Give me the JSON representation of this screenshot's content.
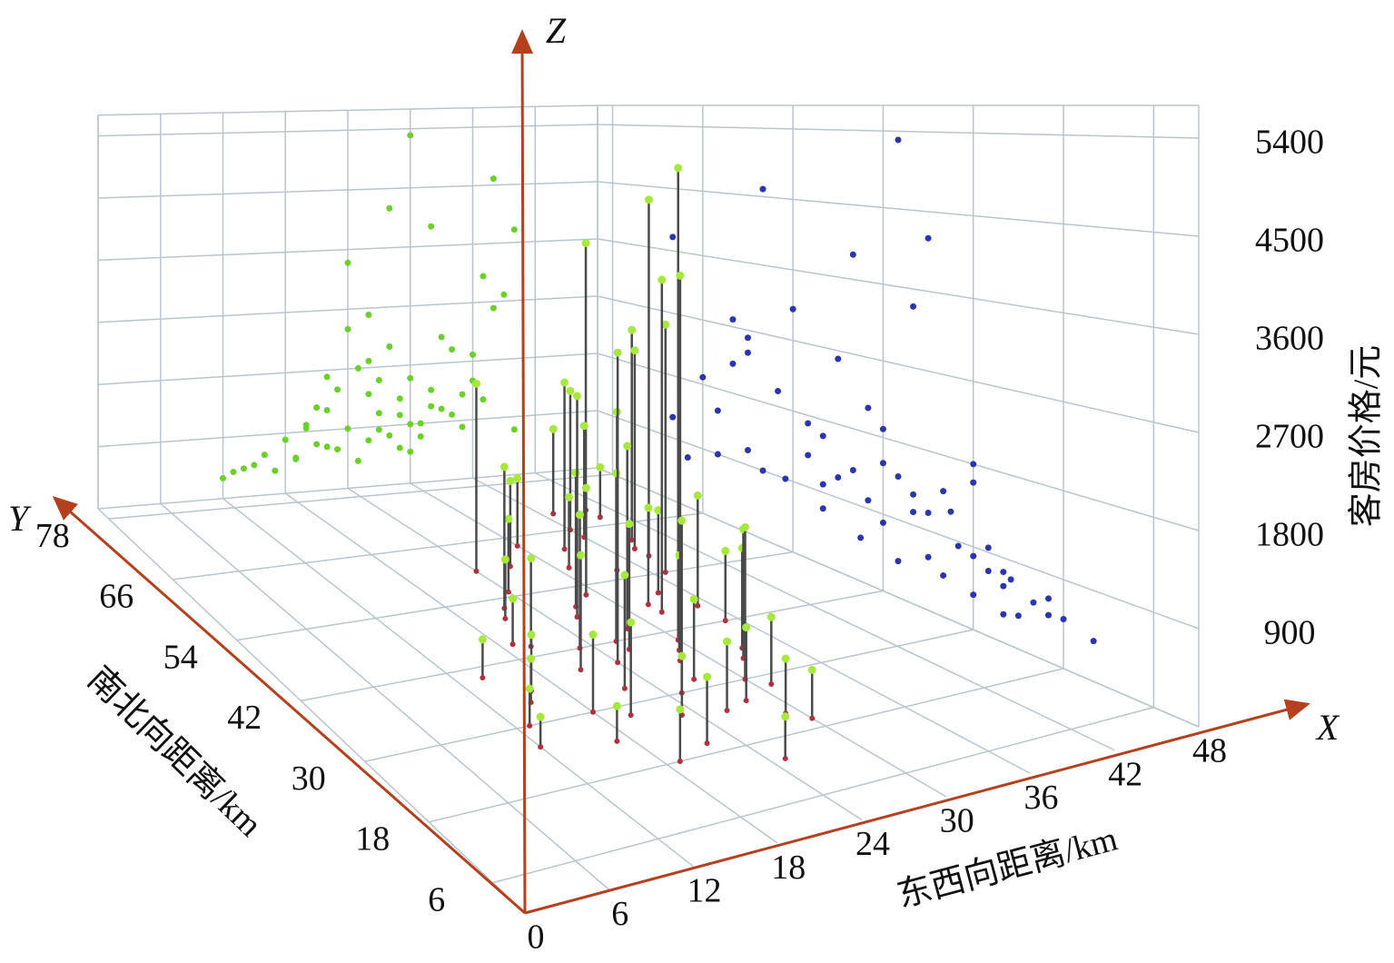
{
  "chart_data": {
    "type": "scatter3d",
    "x_label": "东西向距离/km",
    "y_label": "南北向距离/km",
    "z_label": "客房价格/元",
    "axis_letters": {
      "x": "X",
      "y": "Y",
      "z": "Z"
    },
    "xlim": [
      0,
      48
    ],
    "ylim": [
      0,
      80
    ],
    "zlim": [
      0,
      5700
    ],
    "xticks": [
      0,
      6,
      12,
      18,
      24,
      30,
      36,
      42,
      48
    ],
    "yticks": [
      6,
      18,
      30,
      42,
      54,
      66,
      78
    ],
    "zticks": [
      900,
      1800,
      2700,
      3600,
      4500,
      5400
    ],
    "grid": true,
    "axis_color": "#b5401e",
    "point_color": "#a6e83c",
    "stem_color": "#4a4a4a",
    "base_color": "#b03040",
    "wall_y_color": "#6ad02a",
    "wall_x_color": "#2a36b0",
    "x": [
      14,
      16,
      18,
      19,
      20,
      21,
      22,
      22,
      23,
      24,
      24,
      25,
      26,
      26,
      27,
      28,
      28,
      29,
      30,
      30,
      31,
      32,
      32,
      33,
      34,
      35,
      36,
      37,
      38,
      39,
      40,
      17,
      19,
      21,
      23,
      25,
      27,
      29,
      31,
      33,
      35,
      20,
      22,
      24,
      26,
      28,
      30,
      32,
      34,
      36,
      38,
      13,
      15,
      12,
      26,
      27,
      29,
      30,
      37,
      40
    ],
    "y": [
      40,
      36,
      30,
      45,
      28,
      50,
      33,
      20,
      42,
      38,
      55,
      30,
      48,
      25,
      60,
      36,
      44,
      52,
      40,
      30,
      58,
      46,
      34,
      62,
      50,
      42,
      66,
      54,
      58,
      62,
      70,
      24,
      18,
      38,
      26,
      14,
      32,
      22,
      28,
      36,
      46,
      44,
      52,
      60,
      40,
      26,
      20,
      48,
      56,
      64,
      60,
      30,
      34,
      26,
      42,
      50,
      38,
      64,
      70,
      68
    ],
    "z": [
      420,
      600,
      800,
      520,
      950,
      700,
      1200,
      650,
      1500,
      3400,
      900,
      1800,
      2600,
      700,
      1100,
      4200,
      2100,
      1300,
      5300,
      1600,
      900,
      3900,
      1400,
      2200,
      1000,
      800,
      1900,
      3100,
      4600,
      2800,
      3800,
      350,
      500,
      1250,
      600,
      400,
      850,
      550,
      700,
      1100,
      1300,
      1000,
      1700,
      2400,
      1400,
      750,
      480,
      1150,
      2000,
      1500,
      2600,
      380,
      460,
      300,
      1900,
      1600,
      1050,
      900,
      1200,
      700
    ]
  }
}
